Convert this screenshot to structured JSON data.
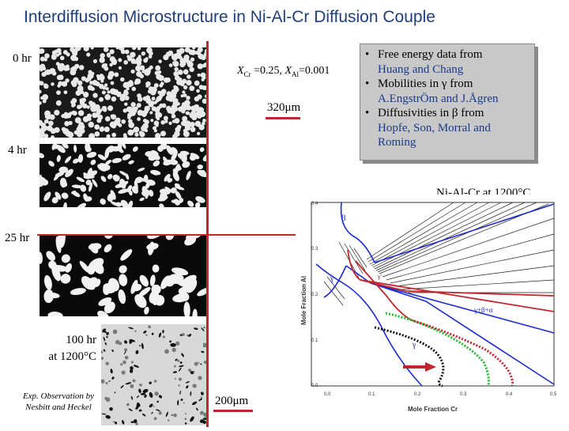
{
  "title": "Interdiffusion Microstructure in Ni-Al-Cr Diffusion Couple",
  "time_labels": {
    "t0": "0 hr",
    "t4": "4 hr",
    "t25": "25 hr",
    "t100_line1": "100 hr",
    "t100_line2": "at 1200°C"
  },
  "composition": {
    "xcr_sym": "X",
    "xcr_sub": "Cr",
    "xcr_val": " =0.25, ",
    "xal_sym": "X",
    "xal_sub": "Al",
    "xal_val": "=0.001"
  },
  "scale_bars": {
    "top": "320μm",
    "bottom": "200μm"
  },
  "experiment_credit": {
    "line1": "Exp. Observation by",
    "line2": "Nesbitt and Heckel"
  },
  "info_box": {
    "items": [
      {
        "first": "Free energy data from",
        "rest": [
          "Huang and Chang"
        ]
      },
      {
        "first": "Mobilities in γ from",
        "rest": [
          "A.EngstrÖm  and J.Ågren"
        ]
      },
      {
        "first": "Diffusivities in β from",
        "rest": [
          "Hopfe, Son, Morral and",
          "Roming"
        ]
      }
    ]
  },
  "phase_diagram": {
    "title": "Ni-Al-Cr at 1200°C",
    "xlabel": "Mole Fraction Cr",
    "ylabel": "Mole Fraction Al",
    "x_ticks": [
      "0.0",
      "0.1",
      "0.2",
      "0.3",
      "0.4",
      "0.5"
    ],
    "y_ticks": [
      "0.0",
      "0.1",
      "0.2",
      "0.3",
      "0.4"
    ],
    "phase_labels": {
      "beta": "β",
      "gamma_prime": "γ'",
      "gamma_left": "γ",
      "gamma_bottom": "γ",
      "g_b_a": "γ+β+α"
    }
  },
  "colors": {
    "accent_red": "#c0262d",
    "title_blue": "#1f3f7a",
    "info_blue": "#1b3a8a",
    "phase_blue": "#1c2bd0"
  }
}
